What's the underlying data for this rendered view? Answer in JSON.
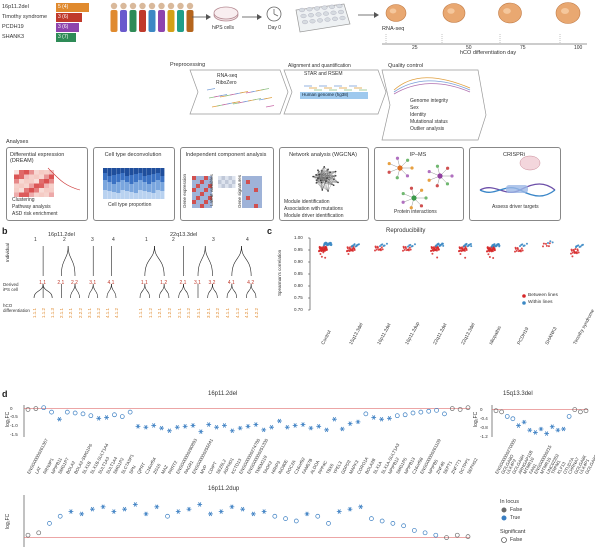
{
  "panel_a": {
    "lines": [
      {
        "name": "16p11.2del",
        "count": "5 (4)",
        "color": "#e08a2e",
        "bar": 0.95
      },
      {
        "name": "Timothy syndrome",
        "count": "3 (6)",
        "color": "#c0392b",
        "bar": 0.72
      },
      {
        "name": "PCDH19",
        "count": "3 (6)",
        "color": "#8e44ad",
        "bar": 0.6
      },
      {
        "name": "SHANK3",
        "count": "3 (7)",
        "color": "#2e8b57",
        "bar": 0.5
      }
    ],
    "hips_label": "hiPS cells",
    "day0_label": "Day 0",
    "rnaseq_label": "RNA-seq",
    "day_ticks": [
      "25",
      "50",
      "75",
      "100"
    ],
    "day_axis_label": "hCO differentiation day",
    "pipeline": {
      "pre_title": "Preprocessing",
      "pre_l1": "RNA-seq",
      "pre_l2": "RiboZero",
      "align_title": "Alignment and quantification",
      "align_l1": "STAR and RSEM",
      "align_genome": "Human genome (hg38)",
      "qc_title": "Quality control",
      "qc_items": [
        "Genome integrity",
        "Sex",
        "Identity",
        "Mutational status",
        "Outlier analysis"
      ]
    },
    "analyses_label": "Analyses",
    "analyses": [
      {
        "title": "Differential expression (DREAM)",
        "items": [
          "Clustering",
          "Pathway analysis",
          "ASD risk enrichment"
        ]
      },
      {
        "title": "Cell type deconvolution",
        "items": [
          "Cell type proportion"
        ]
      },
      {
        "title": "Independent component analysis",
        "items": [
          "Gene expression",
          "Latent variables",
          "Gene signatures"
        ]
      },
      {
        "title": "Network analysis (WGCNA)",
        "items": [
          "Module identification",
          "Association with mutations",
          "Module driver identification"
        ]
      },
      {
        "title": "IP–MS",
        "items": [
          "Protein interactions"
        ]
      },
      {
        "title": "CRISPRi",
        "items": [
          "Assess driver targets"
        ]
      }
    ]
  },
  "panel_b": {
    "titles": [
      "16p11.2del",
      "22q13.3del"
    ],
    "row_individual": "Individual",
    "row_ips": "Derived iPS cell",
    "row_hco": "hCO differentiation",
    "left": {
      "individuals": [
        "1",
        "2",
        "3",
        "4"
      ],
      "ips": [
        "1.1",
        "2.1",
        "2.2",
        "3.1",
        "4.1"
      ],
      "hco": [
        "1.1.1",
        "1.1.2",
        "1.1.3",
        "2.1.1",
        "2.2.1",
        "2.2.2",
        "3.1.1",
        "3.1.2",
        "4.1.1",
        "4.1.2"
      ]
    },
    "right": {
      "individuals": [
        "1",
        "2",
        "3",
        "4"
      ],
      "ips": [
        "1.1",
        "1.2",
        "2.1",
        "3.1",
        "3.2",
        "4.1",
        "4.2"
      ],
      "hco": [
        "1.1.1",
        "1.1.2",
        "1.2.1",
        "1.2.2",
        "2.1.1",
        "2.1.2",
        "3.1.1",
        "3.2.1",
        "3.2.2",
        "4.1.1",
        "4.1.2",
        "4.2.1",
        "4.2.2"
      ]
    }
  },
  "panel_c": {
    "title": "Reproducibility",
    "ylabel": "Spearman's correlation",
    "yticks": [
      "1.00",
      "0.95",
      "0.90",
      "0.85",
      "0.80",
      "0.75",
      "0.70"
    ],
    "legend": [
      "Between lines",
      "Within lines"
    ],
    "colors": {
      "between": "#d62728",
      "within": "#3b88c4"
    }
  },
  "panel_d": {
    "ylabel": "log₂FC",
    "top_left_title": "16p11.2del",
    "top_right_title": "15q13.3del",
    "bottom_title": "16p11.2dup",
    "legend_locus_title": "In locus",
    "legend_sig_title": "Significant",
    "legend_false": "False",
    "legend_true": "True",
    "legend_sig_false": "False",
    "colors": {
      "true": "#3a7ec2",
      "false": "#6b6b6b",
      "zero": "#e07070"
    }
  },
  "chart_data": [
    {
      "type": "scatter",
      "title": "Reproducibility",
      "ylabel": "Spearman's correlation",
      "ylim": [
        0.7,
        1.0
      ],
      "categories": [
        "Control",
        "15q13.3del",
        "16p11.2del",
        "16p11.2dup",
        "22q11.2del",
        "22q13.3del",
        "Idiopathic",
        "PCDH19",
        "SHANK3",
        "Timothy syndrome"
      ],
      "series": [
        {
          "name": "Between lines",
          "values": [
            0.955,
            0.955,
            0.958,
            0.957,
            0.956,
            0.955,
            0.954,
            0.953,
            0.975,
            0.945
          ]
        },
        {
          "name": "Within lines",
          "values": [
            0.975,
            0.97,
            0.972,
            0.97,
            0.972,
            0.971,
            0.97,
            0.972,
            0.985,
            0.968
          ]
        }
      ]
    },
    {
      "type": "scatter",
      "title": "16p11.2del",
      "ylabel": "log2FC",
      "ylim": [
        -1.6,
        0.2
      ],
      "categories": [
        "ENSG00000261367",
        "LAT",
        "RRN3P1",
        "NPIPB11",
        "SMG1P7",
        "BOLA2",
        "BOLA2-SMG1P6",
        "SLX1B",
        "SLX1B-SULT1A4",
        "SULT1A3",
        "SULT1A4",
        "SMG1P2",
        "SLC7A5P1",
        "SPN",
        "QPRT",
        "C16orf54",
        "ZG16",
        "MAZ",
        "PRRT2",
        "ENSG00000280893",
        "PAGR1",
        "ENSG00000255641",
        "MVP",
        "CDIPT",
        "SEZ6L2",
        "ASPHD1",
        "KCTD13",
        "ENSG00000274780",
        "ENSG00000251330",
        "TMEM219",
        "TAOK2",
        "HIRIP3",
        "INO80E",
        "DOC2A",
        "C16orf92",
        "FAM57B",
        "ALDOA",
        "PPP4C",
        "TBX6",
        "YPEL3",
        "GDPD3",
        "MAPK3",
        "CORO1A",
        "BOLA2B",
        "SLX1A",
        "SLX1A-SULT1A3",
        "NPIPB12",
        "SMG1P5",
        "NPIPB13",
        "C16orf98",
        "ENSG00000261109",
        "NPIPB5",
        "ZNF48",
        "SEPT1",
        "ZNF771",
        "DCTPP1",
        "SEPHS2"
      ],
      "values": [
        -0.05,
        0.0,
        0.05,
        -0.2,
        -0.6,
        -0.2,
        -0.25,
        -0.3,
        -0.4,
        -0.55,
        -0.5,
        -0.35,
        -0.45,
        -0.2,
        -1.0,
        -1.05,
        -0.95,
        -1.1,
        -1.25,
        -1.05,
        -1.0,
        -0.95,
        -1.3,
        -0.9,
        -1.05,
        -0.95,
        -1.25,
        -1.1,
        -1.0,
        -0.9,
        -1.2,
        -1.05,
        -0.7,
        -1.05,
        -0.95,
        -0.9,
        -1.1,
        -1.0,
        -1.2,
        -0.6,
        -1.15,
        -0.85,
        -0.75,
        -0.3,
        -0.5,
        -0.6,
        -0.55,
        -0.4,
        -0.35,
        -0.25,
        -0.2,
        -0.15,
        -0.1,
        -0.3,
        0.0,
        -0.05,
        0.05
      ]
    },
    {
      "type": "scatter",
      "title": "15q13.3del",
      "ylabel": "log2FC",
      "ylim": [
        -1.2,
        0.2
      ],
      "categories": [
        "ENSG00000270005",
        "GOLGA8O",
        "ULK4P2",
        "GOLGA8H",
        "ARHGAP11B",
        "MTMR10",
        "FAN1",
        "ENSG00000215",
        "MTMR15",
        "LINC02352",
        "TRPM1",
        "KLF13",
        "OTUD7A",
        "CHRNA7",
        "GOLGA8K",
        "ULK4P1",
        "GOLGA8O"
      ],
      "values": [
        -0.05,
        -0.1,
        -0.3,
        -0.4,
        -0.7,
        -0.55,
        -0.9,
        -1.0,
        -0.85,
        -1.05,
        -0.75,
        -0.9,
        -0.85,
        -0.3,
        0.0,
        -0.1,
        -0.05
      ]
    },
    {
      "type": "scatter",
      "title": "16p11.2dup",
      "ylabel": "log2FC",
      "values": [
        0.05,
        0.1,
        0.3,
        0.45,
        0.55,
        0.5,
        0.6,
        0.65,
        0.55,
        0.6,
        0.7,
        0.5,
        0.65,
        0.45,
        0.55,
        0.6,
        0.7,
        0.5,
        0.55,
        0.65,
        0.6,
        0.5,
        0.55,
        0.45,
        0.4,
        0.35,
        0.5,
        0.45,
        0.3,
        0.55,
        0.6,
        0.65,
        0.4,
        0.35,
        0.3,
        0.25,
        0.15,
        0.1,
        0.05,
        0.0,
        0.05,
        0.02
      ]
    }
  ]
}
